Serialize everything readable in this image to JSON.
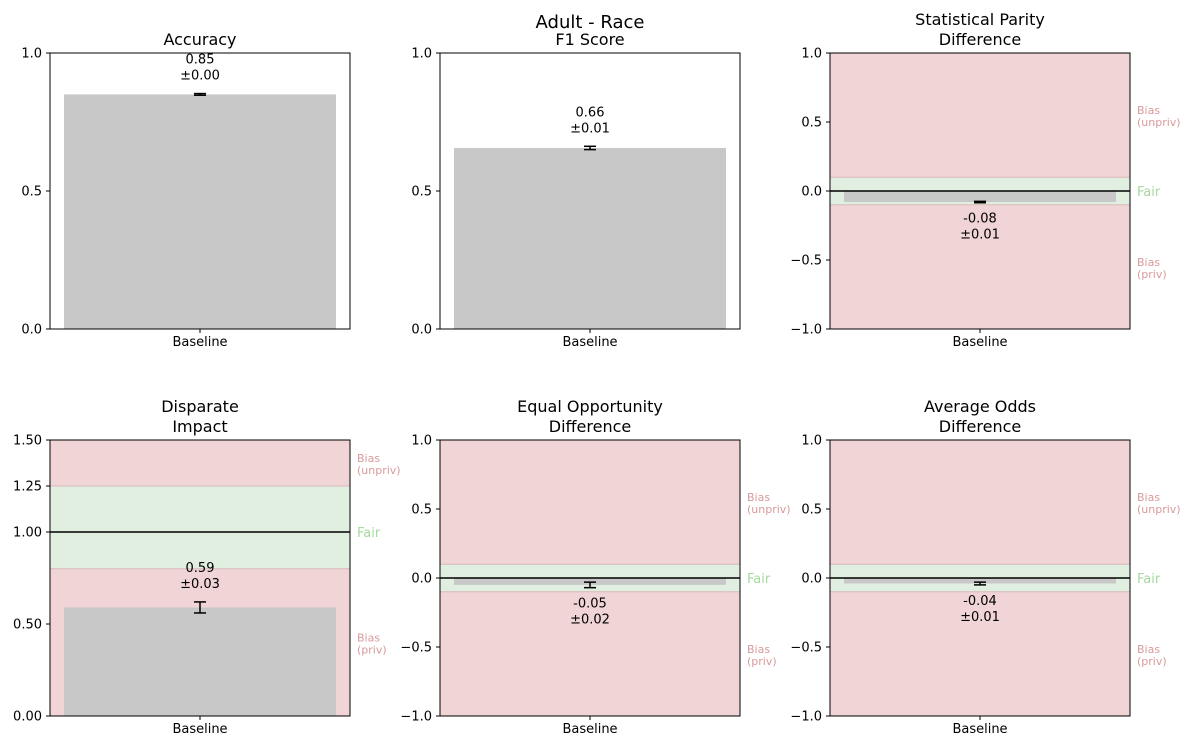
{
  "suptitle": "Adult - Race",
  "colors": {
    "bar": "#c8c8c8",
    "bias_zone": "#f0d4d6",
    "fair_zone": "#e0efe0",
    "bias_text": "#d99a9d",
    "fair_text": "#a6d8a0",
    "ink": "#000000"
  },
  "chart_data": [
    {
      "type": "bar",
      "title": [
        "Accuracy"
      ],
      "categories": [
        "Baseline"
      ],
      "values": [
        0.85
      ],
      "errors": [
        0.003
      ],
      "value_label": [
        "0.85",
        "±0.00"
      ],
      "ylim": [
        0,
        1
      ],
      "yticks": [
        0,
        0.5,
        1
      ],
      "ytick_labels": [
        "0.0",
        "0.5",
        "1.0"
      ]
    },
    {
      "type": "bar",
      "title": [
        "F1 Score"
      ],
      "categories": [
        "Baseline"
      ],
      "values": [
        0.656
      ],
      "errors": [
        0.006
      ],
      "value_label": [
        "0.66",
        "±0.01"
      ],
      "ylim": [
        0,
        1
      ],
      "yticks": [
        0,
        0.5,
        1
      ],
      "ytick_labels": [
        "0.0",
        "0.5",
        "1.0"
      ]
    },
    {
      "type": "bar",
      "title": [
        "Statistical Parity",
        "Difference"
      ],
      "categories": [
        "Baseline"
      ],
      "values": [
        -0.08
      ],
      "errors": [
        0.005
      ],
      "value_label": [
        "-0.08",
        "±0.01"
      ],
      "ylim": [
        -1,
        1
      ],
      "yticks": [
        -1,
        -0.5,
        0,
        0.5,
        1
      ],
      "ytick_labels": [
        "−1.0",
        "−0.5",
        "0.0",
        "0.5",
        "1.0"
      ],
      "reference_line": 0,
      "fair_band": [
        -0.1,
        0.1
      ],
      "zone_labels": {
        "upper": [
          "Bias",
          "(unpriv)"
        ],
        "fair": "Fair",
        "lower": [
          "Bias",
          "(priv)"
        ]
      },
      "zone_label_values": {
        "upper": 0.55,
        "fair": 0,
        "lower": -0.55
      }
    },
    {
      "type": "bar",
      "title": [
        "Disparate",
        "Impact"
      ],
      "categories": [
        "Baseline"
      ],
      "values": [
        0.59
      ],
      "errors": [
        0.03
      ],
      "value_label": [
        "0.59",
        "±0.03"
      ],
      "ylim": [
        0,
        1.5
      ],
      "yticks": [
        0,
        0.5,
        1,
        1.25,
        1.5
      ],
      "ytick_labels": [
        "0.00",
        "0.50",
        "1.00",
        "1.25",
        "1.50"
      ],
      "reference_line": 1,
      "fair_band": [
        0.8,
        1.25
      ],
      "zone_labels": {
        "upper": [
          "Bias",
          "(unpriv)"
        ],
        "fair": "Fair",
        "lower": [
          "Bias",
          "(priv)"
        ]
      },
      "zone_label_values": {
        "upper": 1.375,
        "fair": 1.0,
        "lower": 0.4
      }
    },
    {
      "type": "bar",
      "title": [
        "Equal Opportunity",
        "Difference"
      ],
      "categories": [
        "Baseline"
      ],
      "values": [
        -0.05
      ],
      "errors": [
        0.02
      ],
      "value_label": [
        "-0.05",
        "±0.02"
      ],
      "ylim": [
        -1,
        1
      ],
      "yticks": [
        -1,
        -0.5,
        0,
        0.5,
        1
      ],
      "ytick_labels": [
        "−1.0",
        "−0.5",
        "0.0",
        "0.5",
        "1.0"
      ],
      "reference_line": 0,
      "fair_band": [
        -0.1,
        0.1
      ],
      "zone_labels": {
        "upper": [
          "Bias",
          "(unpriv)"
        ],
        "fair": "Fair",
        "lower": [
          "Bias",
          "(priv)"
        ]
      },
      "zone_label_values": {
        "upper": 0.55,
        "fair": 0,
        "lower": -0.55
      }
    },
    {
      "type": "bar",
      "title": [
        "Average Odds",
        "Difference"
      ],
      "categories": [
        "Baseline"
      ],
      "values": [
        -0.04
      ],
      "errors": [
        0.01
      ],
      "value_label": [
        "-0.04",
        "±0.01"
      ],
      "ylim": [
        -1,
        1
      ],
      "yticks": [
        -1,
        -0.5,
        0,
        0.5,
        1
      ],
      "ytick_labels": [
        "−1.0",
        "−0.5",
        "0.0",
        "0.5",
        "1.0"
      ],
      "reference_line": 0,
      "fair_band": [
        -0.1,
        0.1
      ],
      "zone_labels": {
        "upper": [
          "Bias",
          "(unpriv)"
        ],
        "fair": "Fair",
        "lower": [
          "Bias",
          "(priv)"
        ]
      },
      "zone_label_values": {
        "upper": 0.55,
        "fair": 0,
        "lower": -0.55
      }
    }
  ]
}
